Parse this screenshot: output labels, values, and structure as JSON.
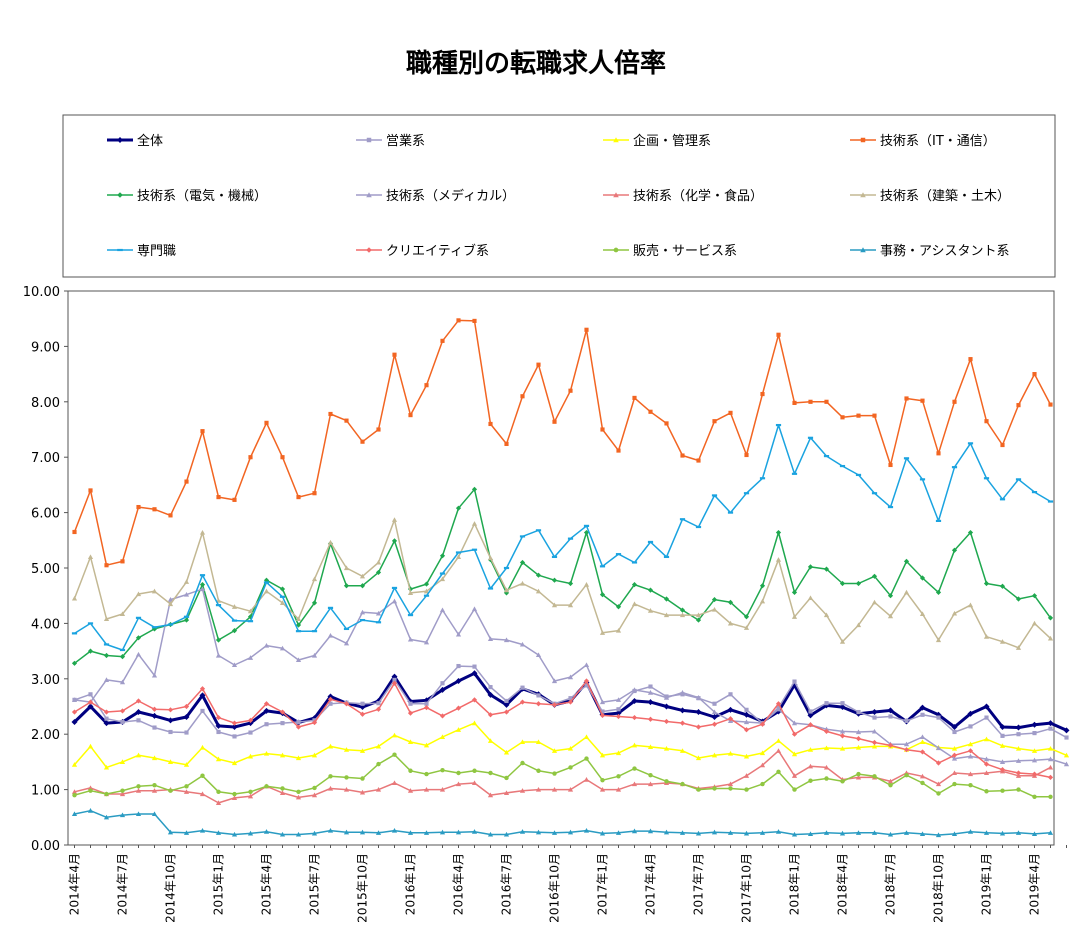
{
  "chart_data": {
    "type": "line",
    "title": "職種別の転職求人倍率",
    "xlabel": "",
    "ylabel": "",
    "ylim": [
      0,
      10
    ],
    "yticks": [
      "0.00",
      "1.00",
      "2.00",
      "3.00",
      "4.00",
      "5.00",
      "6.00",
      "7.00",
      "8.00",
      "9.00",
      "10.00"
    ],
    "xtick_labels": [
      "2014年4月",
      "2014年7月",
      "2014年10月",
      "2015年1月",
      "2015年4月",
      "2015年7月",
      "2015年10月",
      "2016年1月",
      "2016年4月",
      "2016年7月",
      "2016年10月",
      "2017年1月",
      "2017年4月",
      "2017年7月",
      "2017年10月",
      "2018年1月",
      "2018年4月",
      "2018年7月",
      "2018年10月",
      "2019年1月",
      "2019年4月"
    ],
    "legend_position": "top",
    "grid": false,
    "series": [
      {
        "name": "全体",
        "color": "#000080",
        "marker": "diamond",
        "width": 3,
        "values": [
          2.22,
          2.5,
          2.2,
          2.22,
          2.4,
          2.33,
          2.25,
          2.31,
          2.7,
          2.15,
          2.13,
          2.2,
          2.42,
          2.38,
          2.21,
          2.29,
          2.68,
          2.56,
          2.49,
          2.6,
          3.04,
          2.59,
          2.61,
          2.8,
          2.96,
          3.1,
          2.71,
          2.53,
          2.82,
          2.72,
          2.53,
          2.6,
          2.93,
          2.35,
          2.38,
          2.6,
          2.58,
          2.5,
          2.43,
          2.4,
          2.31,
          2.44,
          2.35,
          2.23,
          2.41,
          2.89,
          2.34,
          2.52,
          2.49,
          2.37,
          2.4,
          2.43,
          2.23,
          2.48,
          2.35,
          2.13,
          2.37,
          2.5,
          2.13,
          2.12,
          2.17,
          2.2,
          2.07
        ]
      },
      {
        "name": "営業系",
        "color": "#a09cc8",
        "marker": "square",
        "width": 1.5,
        "values": [
          2.62,
          2.72,
          2.28,
          2.22,
          2.25,
          2.12,
          2.04,
          2.03,
          2.42,
          2.04,
          1.96,
          2.03,
          2.18,
          2.2,
          2.22,
          2.25,
          2.55,
          2.57,
          2.55,
          2.56,
          2.98,
          2.55,
          2.55,
          2.92,
          3.23,
          3.22,
          2.85,
          2.6,
          2.84,
          2.7,
          2.55,
          2.65,
          2.88,
          2.41,
          2.45,
          2.78,
          2.86,
          2.68,
          2.72,
          2.65,
          2.55,
          2.72,
          2.44,
          2.2,
          2.48,
          2.95,
          2.41,
          2.56,
          2.56,
          2.4,
          2.3,
          2.32,
          2.24,
          2.35,
          2.3,
          2.04,
          2.14,
          2.3,
          1.97,
          2.0,
          2.02,
          2.1,
          1.94
        ]
      },
      {
        "name": "企画・管理系",
        "color": "#ffff00",
        "marker": "triangle",
        "width": 1.5,
        "values": [
          1.45,
          1.78,
          1.4,
          1.5,
          1.62,
          1.57,
          1.5,
          1.45,
          1.76,
          1.55,
          1.48,
          1.6,
          1.65,
          1.62,
          1.57,
          1.62,
          1.78,
          1.72,
          1.7,
          1.78,
          1.98,
          1.86,
          1.8,
          1.95,
          2.08,
          2.2,
          1.88,
          1.67,
          1.86,
          1.86,
          1.7,
          1.74,
          1.95,
          1.62,
          1.66,
          1.8,
          1.77,
          1.74,
          1.7,
          1.57,
          1.62,
          1.65,
          1.6,
          1.66,
          1.88,
          1.64,
          1.72,
          1.75,
          1.74,
          1.76,
          1.78,
          1.78,
          1.72,
          1.86,
          1.76,
          1.74,
          1.82,
          1.91,
          1.79,
          1.74,
          1.7,
          1.74,
          1.62
        ]
      },
      {
        "name": "技術系（IT・通信）",
        "color": "#f26522",
        "marker": "square",
        "width": 1.5,
        "values": [
          5.65,
          6.4,
          5.05,
          5.12,
          6.1,
          6.06,
          5.95,
          6.56,
          7.47,
          6.28,
          6.23,
          7.0,
          7.62,
          7.0,
          6.28,
          6.35,
          7.78,
          7.66,
          7.28,
          7.5,
          8.85,
          7.76,
          8.3,
          9.1,
          9.47,
          9.46,
          7.6,
          7.24,
          8.1,
          8.67,
          7.64,
          8.2,
          9.3,
          7.5,
          7.12,
          8.07,
          7.82,
          7.61,
          7.03,
          6.94,
          7.65,
          7.8,
          7.04,
          8.14,
          9.21,
          7.98,
          8.0,
          8.0,
          7.72,
          7.75,
          7.75,
          6.86,
          8.06,
          8.02,
          7.07,
          8.0,
          8.77,
          7.65,
          7.22,
          7.94,
          8.5,
          7.95
        ]
      },
      {
        "name": "技術系（電気・機械）",
        "color": "#1fa84f",
        "marker": "diamond",
        "width": 1.5,
        "values": [
          3.28,
          3.5,
          3.42,
          3.4,
          3.74,
          3.9,
          3.98,
          4.06,
          4.7,
          3.7,
          3.87,
          4.12,
          4.78,
          4.62,
          3.97,
          4.37,
          5.44,
          4.68,
          4.68,
          4.92,
          5.49,
          4.62,
          4.71,
          5.22,
          6.08,
          6.42,
          5.15,
          4.55,
          5.1,
          4.87,
          4.78,
          4.72,
          5.64,
          4.52,
          4.3,
          4.7,
          4.6,
          4.44,
          4.24,
          4.06,
          4.43,
          4.38,
          4.12,
          4.68,
          5.64,
          4.56,
          5.02,
          4.98,
          4.72,
          4.72,
          4.85,
          4.5,
          5.12,
          4.82,
          4.56,
          5.32,
          5.64,
          4.72,
          4.67,
          4.44,
          4.5,
          4.1
        ]
      },
      {
        "name": "技術系（メディカル）",
        "color": "#a09cc8",
        "marker": "triangle",
        "width": 1.5,
        "values": [
          2.62,
          2.58,
          2.98,
          2.94,
          3.44,
          3.06,
          4.43,
          4.52,
          4.62,
          3.42,
          3.25,
          3.38,
          3.6,
          3.55,
          3.34,
          3.42,
          3.78,
          3.64,
          4.2,
          4.18,
          4.4,
          3.71,
          3.66,
          4.24,
          3.8,
          4.26,
          3.72,
          3.7,
          3.62,
          3.43,
          2.96,
          3.03,
          3.25,
          2.58,
          2.62,
          2.8,
          2.75,
          2.66,
          2.75,
          2.66,
          2.4,
          2.24,
          2.22,
          2.2,
          2.45,
          2.2,
          2.17,
          2.09,
          2.05,
          2.04,
          2.05,
          1.82,
          1.82,
          1.95,
          1.75,
          1.56,
          1.6,
          1.55,
          1.5,
          1.52,
          1.53,
          1.55,
          1.46
        ]
      },
      {
        "name": "技術系（化学・食品）",
        "color": "#e8787a",
        "marker": "triangle",
        "width": 1.5,
        "values": [
          0.96,
          1.03,
          0.92,
          0.92,
          0.98,
          0.98,
          1.0,
          0.96,
          0.92,
          0.76,
          0.85,
          0.88,
          1.06,
          0.94,
          0.86,
          0.9,
          1.02,
          1.0,
          0.95,
          1.0,
          1.12,
          0.98,
          1.0,
          1.0,
          1.1,
          1.12,
          0.9,
          0.94,
          0.98,
          1.0,
          1.0,
          1.0,
          1.18,
          1.0,
          1.0,
          1.1,
          1.1,
          1.12,
          1.1,
          1.02,
          1.05,
          1.1,
          1.25,
          1.44,
          1.7,
          1.25,
          1.42,
          1.4,
          1.18,
          1.22,
          1.22,
          1.15,
          1.3,
          1.24,
          1.1,
          1.3,
          1.28,
          1.3,
          1.33,
          1.25,
          1.25,
          1.4
        ]
      },
      {
        "name": "技術系（建築・土木）",
        "color": "#c3b893",
        "marker": "triangle",
        "width": 1.5,
        "values": [
          4.45,
          5.2,
          4.08,
          4.17,
          4.53,
          4.58,
          4.35,
          4.75,
          5.64,
          4.41,
          4.3,
          4.22,
          4.58,
          4.37,
          4.08,
          4.8,
          5.46,
          5.0,
          4.85,
          5.1,
          5.87,
          4.55,
          4.58,
          4.8,
          5.2,
          5.8,
          5.18,
          4.6,
          4.72,
          4.58,
          4.33,
          4.33,
          4.7,
          3.83,
          3.87,
          4.35,
          4.23,
          4.15,
          4.15,
          4.15,
          4.25,
          4.0,
          3.92,
          4.4,
          5.15,
          4.12,
          4.46,
          4.15,
          3.67,
          3.97,
          4.38,
          4.13,
          4.56,
          4.17,
          3.7,
          4.18,
          4.33,
          3.76,
          3.67,
          3.56,
          4.0,
          3.73
        ]
      },
      {
        "name": "専門職",
        "color": "#1aa3e0",
        "marker": "dash",
        "width": 1.5,
        "values": [
          3.82,
          4.0,
          3.62,
          3.52,
          4.1,
          3.93,
          3.98,
          4.12,
          4.87,
          4.33,
          4.05,
          4.04,
          4.74,
          4.48,
          3.86,
          3.86,
          4.28,
          3.9,
          4.06,
          4.02,
          4.64,
          4.15,
          4.5,
          4.9,
          5.28,
          5.33,
          4.63,
          5.0,
          5.57,
          5.68,
          5.2,
          5.53,
          5.76,
          5.03,
          5.25,
          5.1,
          5.47,
          5.2,
          5.88,
          5.74,
          6.31,
          6.0,
          6.35,
          6.62,
          7.58,
          6.7,
          7.35,
          7.02,
          6.84,
          6.68,
          6.35,
          6.1,
          6.98,
          6.6,
          5.85,
          6.82,
          7.25,
          6.62,
          6.24,
          6.6,
          6.37,
          6.2
        ]
      },
      {
        "name": "クリエイティブ系",
        "color": "#f26a6a",
        "marker": "diamond",
        "width": 1.5,
        "values": [
          2.4,
          2.58,
          2.4,
          2.42,
          2.6,
          2.45,
          2.44,
          2.5,
          2.82,
          2.3,
          2.2,
          2.25,
          2.55,
          2.4,
          2.13,
          2.21,
          2.63,
          2.55,
          2.36,
          2.45,
          2.92,
          2.38,
          2.48,
          2.33,
          2.47,
          2.62,
          2.35,
          2.4,
          2.58,
          2.55,
          2.53,
          2.58,
          2.96,
          2.34,
          2.32,
          2.3,
          2.27,
          2.23,
          2.2,
          2.13,
          2.18,
          2.28,
          2.08,
          2.18,
          2.55,
          2.0,
          2.17,
          2.05,
          1.97,
          1.92,
          1.85,
          1.8,
          1.72,
          1.68,
          1.48,
          1.62,
          1.7,
          1.46,
          1.36,
          1.3,
          1.28,
          1.22
        ]
      },
      {
        "name": "販売・サービス系",
        "color": "#8fc641",
        "marker": "circle",
        "width": 1.5,
        "values": [
          0.9,
          0.98,
          0.92,
          0.98,
          1.06,
          1.08,
          0.98,
          1.06,
          1.25,
          0.96,
          0.92,
          0.96,
          1.06,
          1.02,
          0.96,
          1.03,
          1.24,
          1.22,
          1.2,
          1.46,
          1.63,
          1.34,
          1.28,
          1.35,
          1.3,
          1.34,
          1.3,
          1.21,
          1.48,
          1.34,
          1.29,
          1.4,
          1.56,
          1.17,
          1.24,
          1.38,
          1.26,
          1.15,
          1.1,
          1.0,
          1.02,
          1.02,
          1.0,
          1.1,
          1.32,
          1.0,
          1.16,
          1.2,
          1.15,
          1.28,
          1.24,
          1.08,
          1.26,
          1.12,
          0.93,
          1.1,
          1.08,
          0.97,
          0.98,
          1.0,
          0.87,
          0.87
        ]
      },
      {
        "name": "事務・アシスタント系",
        "color": "#2a9bc2",
        "marker": "triangle",
        "width": 1.5,
        "values": [
          0.56,
          0.62,
          0.5,
          0.54,
          0.56,
          0.56,
          0.23,
          0.22,
          0.26,
          0.22,
          0.19,
          0.21,
          0.24,
          0.19,
          0.19,
          0.21,
          0.26,
          0.23,
          0.23,
          0.22,
          0.26,
          0.22,
          0.22,
          0.23,
          0.23,
          0.24,
          0.19,
          0.19,
          0.24,
          0.23,
          0.22,
          0.23,
          0.26,
          0.21,
          0.22,
          0.25,
          0.25,
          0.23,
          0.22,
          0.21,
          0.23,
          0.22,
          0.21,
          0.22,
          0.24,
          0.19,
          0.2,
          0.22,
          0.21,
          0.22,
          0.22,
          0.19,
          0.22,
          0.2,
          0.18,
          0.2,
          0.24,
          0.22,
          0.21,
          0.22,
          0.2,
          0.22
        ]
      }
    ]
  }
}
